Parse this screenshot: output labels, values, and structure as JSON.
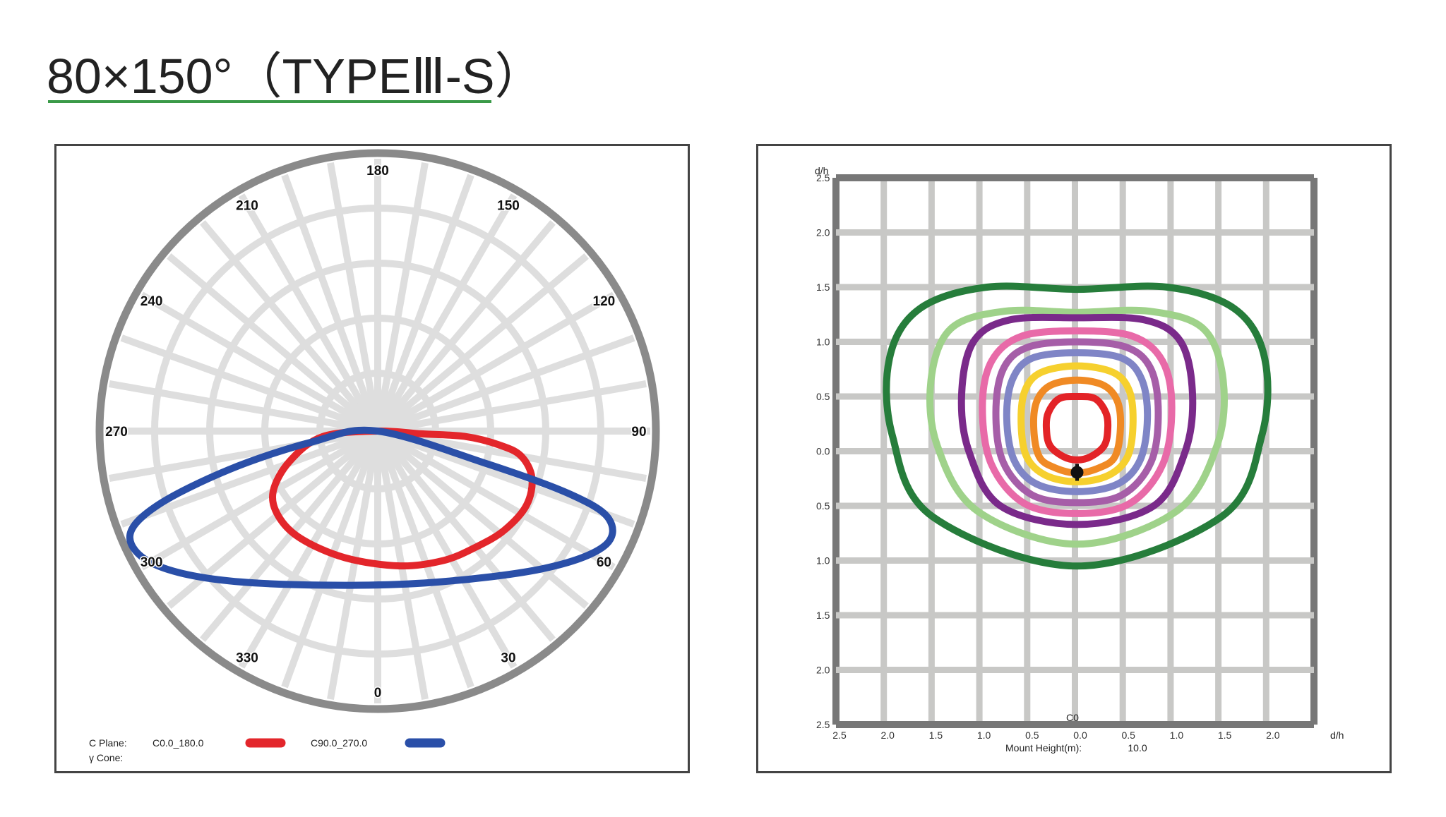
{
  "title": "80×150°（TYPEⅢ-S）",
  "chart_data": [
    {
      "type": "polar",
      "angle_labels": [
        "180",
        "150",
        "120",
        "90",
        "60",
        "30",
        "0",
        "330",
        "300",
        "270",
        "240",
        "210"
      ],
      "legend": {
        "c_plane_label": "C Plane:",
        "cone_label": "γ Cone:",
        "series_names": [
          "C0.0_180.0",
          "C90.0_270.0"
        ]
      },
      "series": [
        {
          "name": "C0.0_180.0",
          "color": "#e3262b",
          "points": [
            [
              0.0,
              0.0
            ],
            [
              0.8,
              -0.05
            ],
            [
              1.6,
              -0.1
            ],
            [
              2.2,
              -0.25
            ],
            [
              2.6,
              -0.45
            ],
            [
              2.8,
              -0.85
            ],
            [
              2.7,
              -1.35
            ],
            [
              2.3,
              -1.8
            ],
            [
              1.8,
              -2.1
            ],
            [
              1.2,
              -2.35
            ],
            [
              0.4,
              -2.45
            ],
            [
              -0.6,
              -2.3
            ],
            [
              -1.4,
              -1.95
            ],
            [
              -1.8,
              -1.55
            ],
            [
              -1.9,
              -1.1
            ],
            [
              -1.6,
              -0.55
            ],
            [
              -1.0,
              -0.1
            ],
            [
              0.0,
              0.0
            ]
          ]
        },
        {
          "name": "C90.0_270.0",
          "color": "#2a4fa8",
          "points": [
            [
              0.0,
              0.0
            ],
            [
              2.0,
              -0.6
            ],
            [
              3.5,
              -1.15
            ],
            [
              4.2,
              -1.6
            ],
            [
              4.1,
              -2.1
            ],
            [
              3.0,
              -2.5
            ],
            [
              1.0,
              -2.75
            ],
            [
              -1.0,
              -2.8
            ],
            [
              -2.9,
              -2.7
            ],
            [
              -4.1,
              -2.4
            ],
            [
              -4.5,
              -1.9
            ],
            [
              -4.0,
              -1.35
            ],
            [
              -2.7,
              -0.7
            ],
            [
              -1.2,
              -0.2
            ],
            [
              0.0,
              0.0
            ]
          ]
        }
      ]
    },
    {
      "type": "contour",
      "xlabel": "d/h",
      "ylabel": "d/h",
      "x_tick_labels": [
        "2.5",
        "2.0",
        "1.5",
        "1.0",
        "0.5",
        "0.0",
        "0.5",
        "1.0",
        "1.5",
        "2.0"
      ],
      "y_tick_labels": [
        "2.5",
        "2.0",
        "1.5",
        "1.0",
        "0.5",
        "0.0",
        "0.5",
        "1.0",
        "1.5",
        "2.0",
        "2.5"
      ],
      "plane_label": "C0",
      "mount_height_label": "Mount Height(m):",
      "mount_height_value": "10.0",
      "xlim": [
        -2.5,
        2.5
      ],
      "ylim": [
        -2.5,
        2.5
      ],
      "contours": [
        {
          "color": "#e32327",
          "points": [
            [
              0.0,
              0.5
            ],
            [
              0.2,
              0.48
            ],
            [
              0.32,
              0.35
            ],
            [
              0.34,
              0.2
            ],
            [
              0.3,
              0.05
            ],
            [
              0.15,
              -0.05
            ],
            [
              0.0,
              -0.08
            ],
            [
              -0.15,
              -0.05
            ],
            [
              -0.3,
              0.05
            ],
            [
              -0.34,
              0.2
            ],
            [
              -0.32,
              0.35
            ],
            [
              -0.2,
              0.48
            ]
          ]
        },
        {
          "color": "#f08a24",
          "points": [
            [
              0.0,
              0.65
            ],
            [
              0.3,
              0.6
            ],
            [
              0.45,
              0.45
            ],
            [
              0.48,
              0.2
            ],
            [
              0.42,
              -0.05
            ],
            [
              0.25,
              -0.15
            ],
            [
              0.0,
              -0.2
            ],
            [
              -0.25,
              -0.15
            ],
            [
              -0.42,
              -0.05
            ],
            [
              -0.48,
              0.2
            ],
            [
              -0.45,
              0.45
            ],
            [
              -0.3,
              0.6
            ]
          ]
        },
        {
          "color": "#f6d02e",
          "points": [
            [
              0.0,
              0.78
            ],
            [
              0.4,
              0.72
            ],
            [
              0.58,
              0.55
            ],
            [
              0.62,
              0.25
            ],
            [
              0.56,
              -0.05
            ],
            [
              0.35,
              -0.22
            ],
            [
              0.0,
              -0.28
            ],
            [
              -0.35,
              -0.22
            ],
            [
              -0.56,
              -0.05
            ],
            [
              -0.62,
              0.25
            ],
            [
              -0.58,
              0.55
            ],
            [
              -0.4,
              0.72
            ]
          ]
        },
        {
          "color": "#7f85c6",
          "points": [
            [
              0.0,
              0.9
            ],
            [
              0.5,
              0.85
            ],
            [
              0.72,
              0.65
            ],
            [
              0.78,
              0.3
            ],
            [
              0.7,
              -0.08
            ],
            [
              0.45,
              -0.3
            ],
            [
              0.0,
              -0.37
            ],
            [
              -0.45,
              -0.3
            ],
            [
              -0.7,
              -0.08
            ],
            [
              -0.78,
              0.3
            ],
            [
              -0.72,
              0.65
            ],
            [
              -0.5,
              0.85
            ]
          ]
        },
        {
          "color": "#a65ea8",
          "points": [
            [
              0.0,
              1.0
            ],
            [
              0.55,
              0.95
            ],
            [
              0.82,
              0.75
            ],
            [
              0.9,
              0.35
            ],
            [
              0.82,
              -0.1
            ],
            [
              0.5,
              -0.4
            ],
            [
              0.0,
              -0.47
            ],
            [
              -0.5,
              -0.4
            ],
            [
              -0.82,
              -0.1
            ],
            [
              -0.9,
              0.35
            ],
            [
              -0.82,
              0.75
            ],
            [
              -0.55,
              0.95
            ]
          ]
        },
        {
          "color": "#e86aa8",
          "points": [
            [
              0.0,
              1.1
            ],
            [
              0.62,
              1.05
            ],
            [
              0.95,
              0.82
            ],
            [
              1.05,
              0.4
            ],
            [
              0.95,
              -0.12
            ],
            [
              0.58,
              -0.48
            ],
            [
              0.0,
              -0.57
            ],
            [
              -0.58,
              -0.48
            ],
            [
              -0.95,
              -0.12
            ],
            [
              -1.05,
              0.4
            ],
            [
              -0.95,
              0.82
            ],
            [
              -0.62,
              1.05
            ]
          ]
        },
        {
          "color": "#7a2a8a",
          "points": [
            [
              0.0,
              1.22
            ],
            [
              0.75,
              1.2
            ],
            [
              1.15,
              1.0
            ],
            [
              1.28,
              0.52
            ],
            [
              1.2,
              0.0
            ],
            [
              0.85,
              -0.5
            ],
            [
              0.0,
              -0.67
            ],
            [
              -0.85,
              -0.5
            ],
            [
              -1.2,
              0.0
            ],
            [
              -1.28,
              0.52
            ],
            [
              -1.15,
              1.0
            ],
            [
              -0.75,
              1.2
            ]
          ]
        },
        {
          "color": "#9fd28a",
          "points": [
            [
              0.0,
              1.27
            ],
            [
              0.8,
              1.28
            ],
            [
              1.4,
              1.12
            ],
            [
              1.62,
              0.65
            ],
            [
              1.55,
              0.05
            ],
            [
              1.1,
              -0.55
            ],
            [
              0.0,
              -0.85
            ],
            [
              -1.1,
              -0.55
            ],
            [
              -1.55,
              0.05
            ],
            [
              -1.62,
              0.65
            ],
            [
              -1.4,
              1.12
            ],
            [
              -0.8,
              1.28
            ]
          ]
        },
        {
          "color": "#267d3b",
          "points": [
            [
              0.0,
              1.48
            ],
            [
              1.0,
              1.5
            ],
            [
              1.75,
              1.3
            ],
            [
              2.08,
              0.85
            ],
            [
              2.05,
              0.15
            ],
            [
              1.6,
              -0.6
            ],
            [
              0.0,
              -1.05
            ],
            [
              -1.6,
              -0.6
            ],
            [
              -2.05,
              0.15
            ],
            [
              -2.08,
              0.85
            ],
            [
              -1.75,
              1.3
            ],
            [
              -1.0,
              1.5
            ]
          ]
        }
      ]
    }
  ]
}
